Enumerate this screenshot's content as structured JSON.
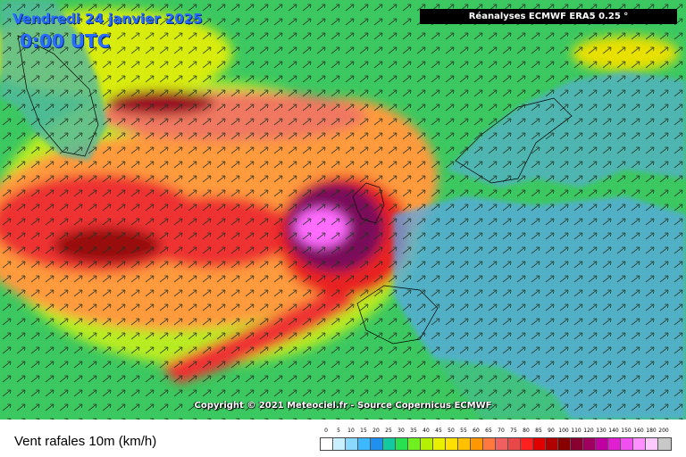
{
  "header": {
    "date": "Vendredi 24 janvier 2025",
    "time": "0:00 UTC",
    "model": "Réanalyses ECMWF ERA5 0.25 °"
  },
  "copyright": "Copyright © 2021 Meteociel.fr - Source Copernicus ECMWF",
  "legend": {
    "title": "Vent rafales 10m (km/h)",
    "labels": [
      "0",
      "5",
      "10",
      "15",
      "20",
      "25",
      "30",
      "35",
      "40",
      "45",
      "50",
      "55",
      "60",
      "65",
      "70",
      "75",
      "80",
      "85",
      "90",
      "100",
      "110",
      "120",
      "130",
      "140",
      "150",
      "160",
      "180",
      "200"
    ],
    "colors": [
      "#ffffff",
      "#c8f0ff",
      "#8ad8ff",
      "#3cb8ff",
      "#2090f0",
      "#14c8a0",
      "#28e050",
      "#70f020",
      "#b4f000",
      "#e8f000",
      "#ffe000",
      "#ffc000",
      "#ff9800",
      "#ff7840",
      "#f06060",
      "#e84848",
      "#ff2020",
      "#e00000",
      "#b00000",
      "#880000",
      "#880030",
      "#a00060",
      "#c000a0",
      "#e020d0",
      "#f050f0",
      "#ff90ff",
      "#ffc8ff",
      "#c8c8c8"
    ]
  },
  "map": {
    "colors": {
      "ocean_base": "#3cc860",
      "land_base": "#5aa8e8",
      "gust_orange": "#ff9a3c",
      "gust_red": "#ee2a2a",
      "gust_darkred": "#8a0a10",
      "gust_purple": "#7a0c5a",
      "gust_pink": "#ff6cff"
    }
  }
}
